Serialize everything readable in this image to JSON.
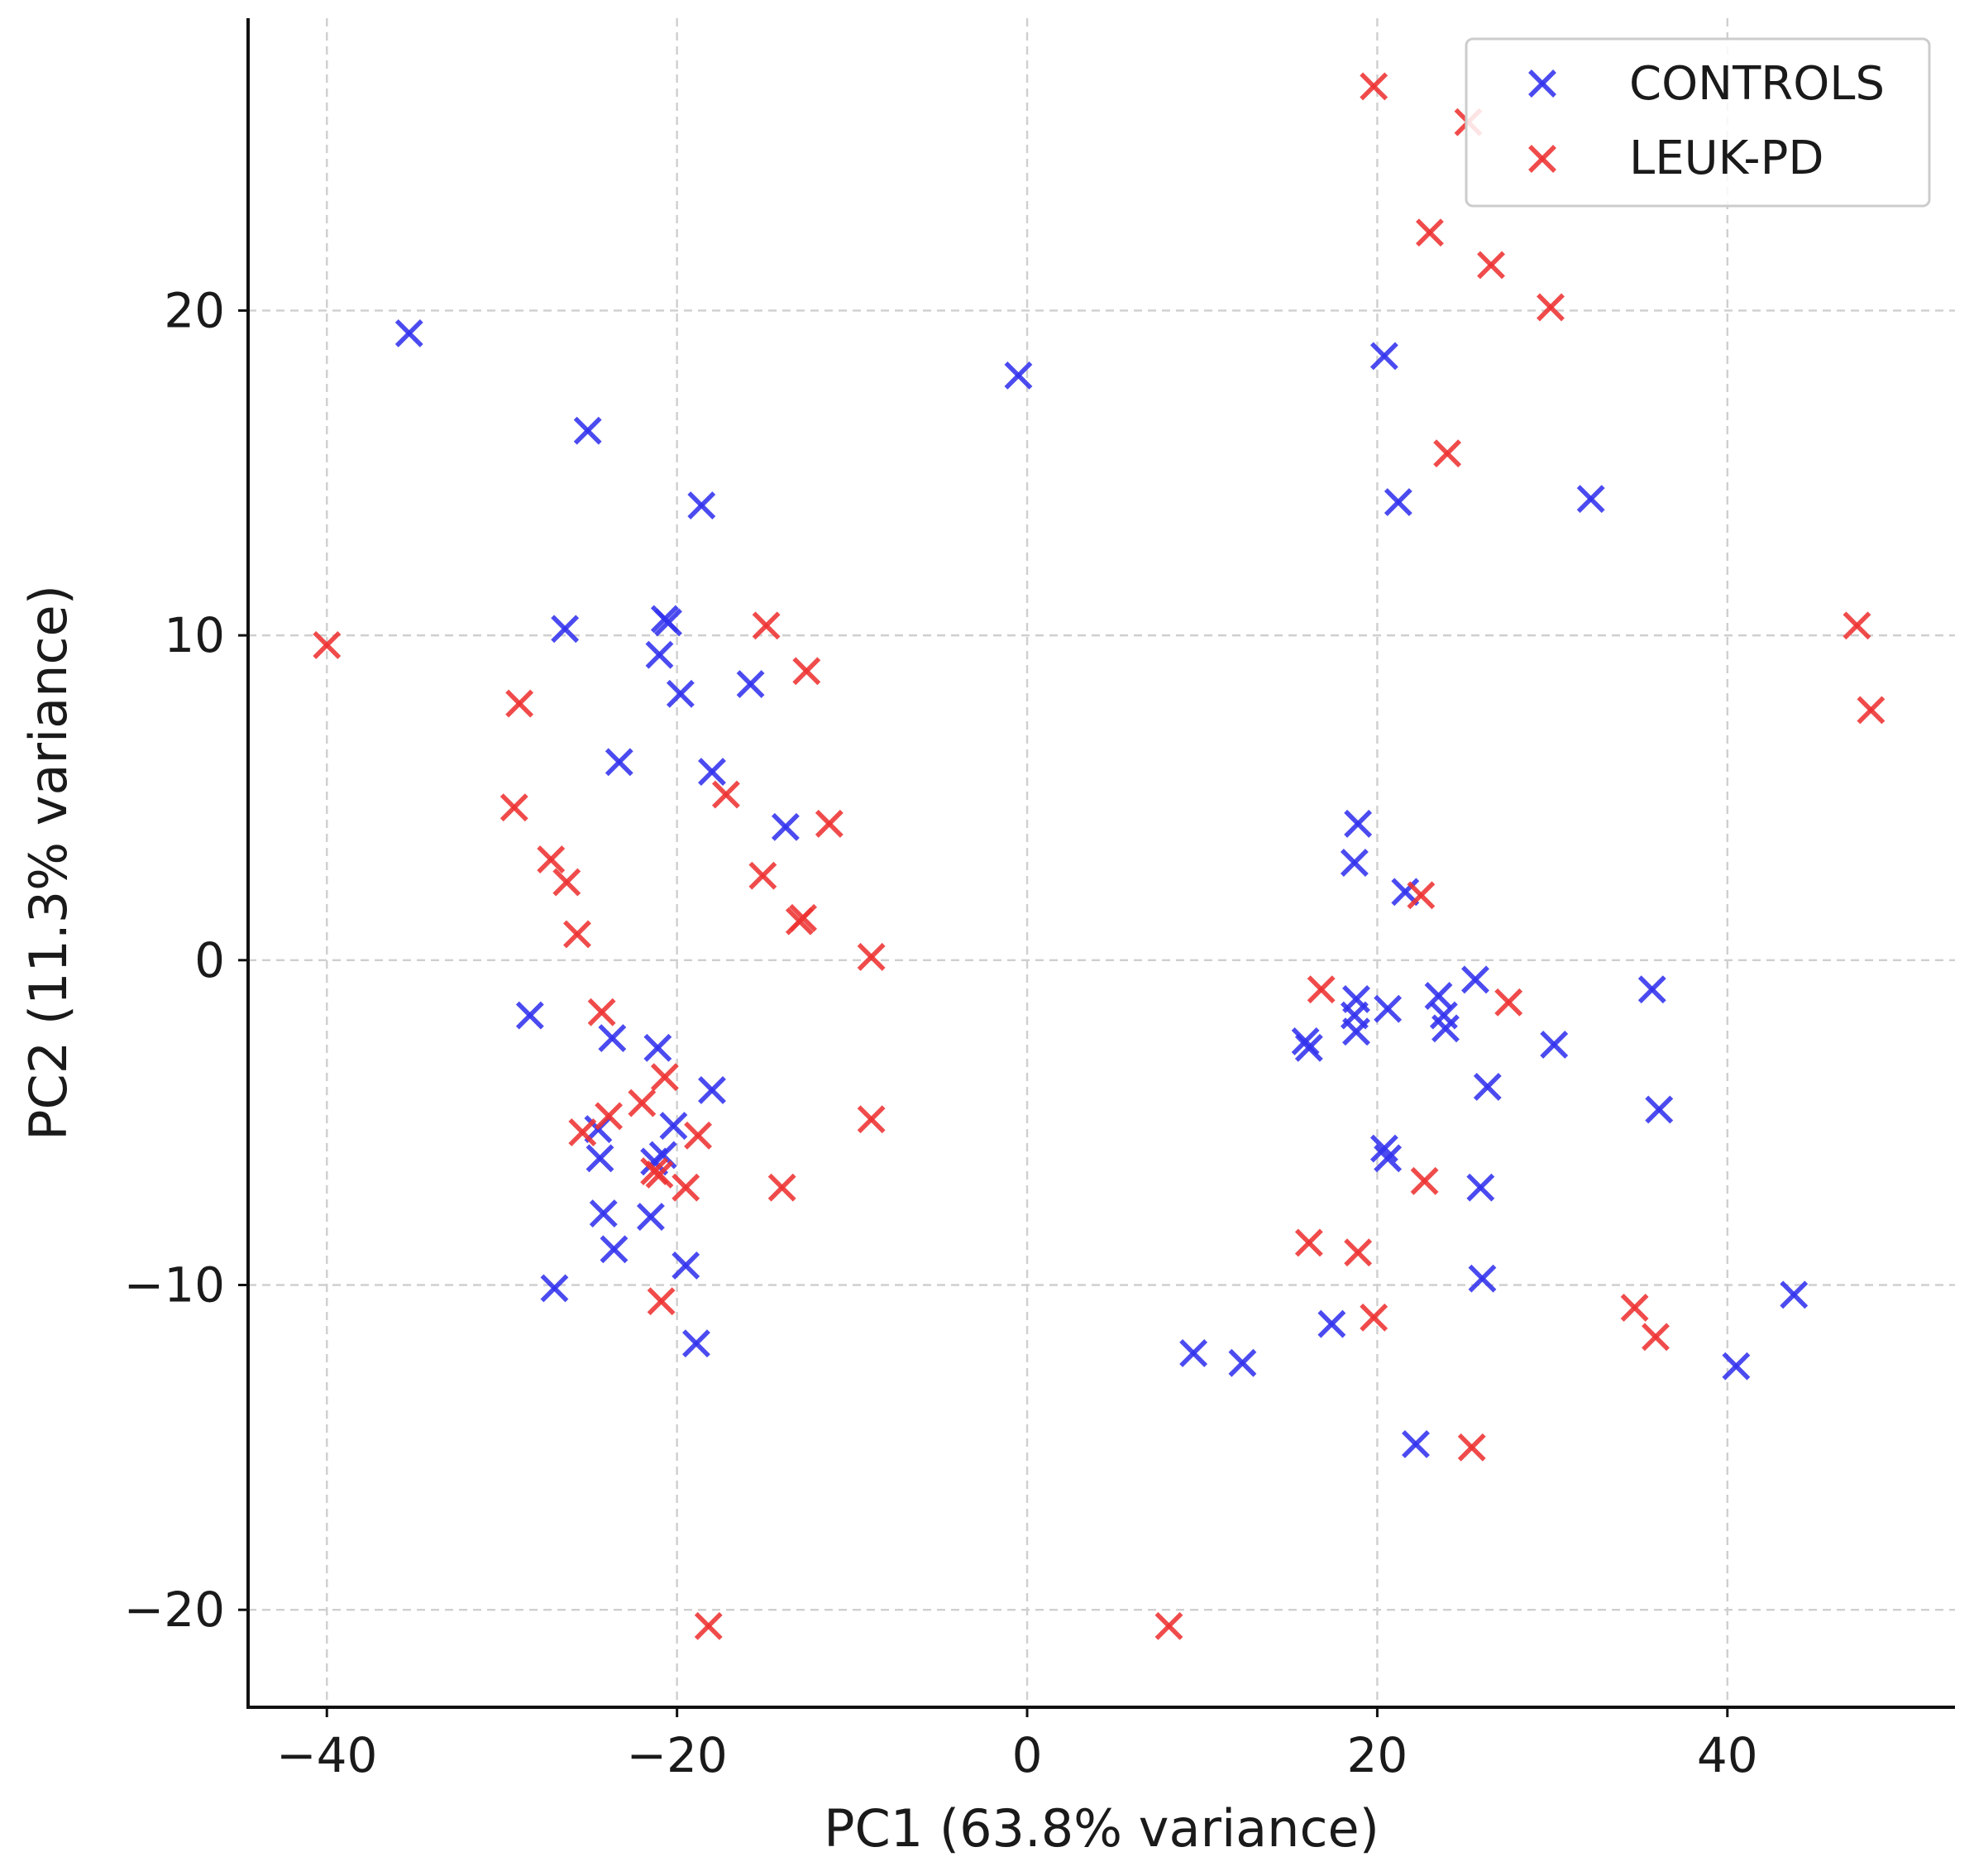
{
  "chart_data": {
    "type": "scatter",
    "title": "",
    "xlabel": "PC1 (63.8% variance)",
    "ylabel": "PC2 (11.3% variance)",
    "xlim": [
      -44.5,
      53
    ],
    "ylim": [
      -23,
      29
    ],
    "xticks": [
      -40,
      -20,
      0,
      20,
      40
    ],
    "yticks": [
      -20,
      -10,
      0,
      10,
      20
    ],
    "xtick_labels": [
      "−40",
      "−20",
      "0",
      "20",
      "40"
    ],
    "ytick_labels": [
      "−20",
      "−10",
      "0",
      "10",
      "20"
    ],
    "grid": true,
    "marker": "x",
    "legend_position": "top-right",
    "series": [
      {
        "name": "CONTROLS",
        "color": "#3333ee",
        "points": [
          [
            -35.3,
            19.3
          ],
          [
            -25.1,
            16.3
          ],
          [
            -18.6,
            14.0
          ],
          [
            -0.5,
            18.0
          ],
          [
            20.4,
            18.6
          ],
          [
            21.2,
            14.1
          ],
          [
            32.2,
            14.2
          ],
          [
            -26.4,
            10.2
          ],
          [
            -20.5,
            10.4
          ],
          [
            -20.7,
            10.5
          ],
          [
            -21.0,
            9.4
          ],
          [
            -19.8,
            8.2
          ],
          [
            -15.8,
            8.5
          ],
          [
            -23.3,
            6.1
          ],
          [
            -18.0,
            5.8
          ],
          [
            -13.8,
            4.1
          ],
          [
            18.9,
            4.2
          ],
          [
            18.7,
            3.0
          ],
          [
            21.6,
            2.1
          ],
          [
            -28.4,
            -1.7
          ],
          [
            -23.7,
            -2.4
          ],
          [
            -21.1,
            -2.7
          ],
          [
            -18.0,
            -4.0
          ],
          [
            -24.5,
            -5.2
          ],
          [
            -24.4,
            -6.1
          ],
          [
            -20.2,
            -5.1
          ],
          [
            -20.8,
            -6.0
          ],
          [
            -21.3,
            -6.2
          ],
          [
            -24.2,
            -7.8
          ],
          [
            -21.5,
            -7.9
          ],
          [
            -23.6,
            -8.9
          ],
          [
            -19.5,
            -9.4
          ],
          [
            -27.0,
            -10.1
          ],
          [
            -18.9,
            -11.8
          ],
          [
            15.9,
            -2.5
          ],
          [
            16.1,
            -2.7
          ],
          [
            18.8,
            -1.2
          ],
          [
            18.7,
            -1.7
          ],
          [
            18.8,
            -2.2
          ],
          [
            20.6,
            -1.5
          ],
          [
            23.5,
            -1.1
          ],
          [
            23.8,
            -1.7
          ],
          [
            23.9,
            -2.1
          ],
          [
            25.6,
            -0.6
          ],
          [
            30.1,
            -2.6
          ],
          [
            35.7,
            -0.9
          ],
          [
            26.3,
            -3.9
          ],
          [
            36.1,
            -4.6
          ],
          [
            20.4,
            -5.8
          ],
          [
            20.6,
            -6.1
          ],
          [
            25.9,
            -7.0
          ],
          [
            26.0,
            -9.8
          ],
          [
            43.8,
            -10.3
          ],
          [
            17.4,
            -11.2
          ],
          [
            9.5,
            -12.1
          ],
          [
            12.3,
            -12.4
          ],
          [
            40.5,
            -12.5
          ],
          [
            22.2,
            -14.9
          ]
        ]
      },
      {
        "name": "LEUK-PD",
        "color": "#ee3333",
        "points": [
          [
            19.8,
            26.9
          ],
          [
            25.2,
            25.8
          ],
          [
            23.0,
            22.4
          ],
          [
            26.5,
            21.4
          ],
          [
            29.9,
            20.1
          ],
          [
            24.0,
            15.6
          ],
          [
            -40.0,
            9.7
          ],
          [
            -29.0,
            7.9
          ],
          [
            -14.9,
            10.3
          ],
          [
            -12.6,
            8.9
          ],
          [
            -29.3,
            4.7
          ],
          [
            -27.2,
            3.1
          ],
          [
            -26.3,
            2.4
          ],
          [
            -25.7,
            0.8
          ],
          [
            -17.2,
            5.1
          ],
          [
            -11.3,
            4.2
          ],
          [
            -15.1,
            2.6
          ],
          [
            -13.0,
            1.2
          ],
          [
            -12.8,
            1.3
          ],
          [
            -8.9,
            0.1
          ],
          [
            47.4,
            10.3
          ],
          [
            48.2,
            7.7
          ],
          [
            22.5,
            2.0
          ],
          [
            -24.3,
            -1.6
          ],
          [
            -20.7,
            -3.6
          ],
          [
            -22.0,
            -4.4
          ],
          [
            -23.9,
            -4.8
          ],
          [
            -25.4,
            -5.3
          ],
          [
            -21.0,
            -6.6
          ],
          [
            -21.3,
            -6.5
          ],
          [
            -19.5,
            -7.0
          ],
          [
            -18.8,
            -5.4
          ],
          [
            -14.0,
            -7.0
          ],
          [
            -8.9,
            -4.9
          ],
          [
            -20.9,
            -10.5
          ],
          [
            -18.2,
            -20.5
          ],
          [
            16.8,
            -0.9
          ],
          [
            27.5,
            -1.3
          ],
          [
            22.7,
            -6.8
          ],
          [
            16.1,
            -8.7
          ],
          [
            18.9,
            -9.0
          ],
          [
            19.8,
            -11.0
          ],
          [
            34.7,
            -10.7
          ],
          [
            35.9,
            -11.6
          ],
          [
            25.4,
            -15.0
          ],
          [
            8.1,
            -20.5
          ]
        ]
      }
    ]
  }
}
